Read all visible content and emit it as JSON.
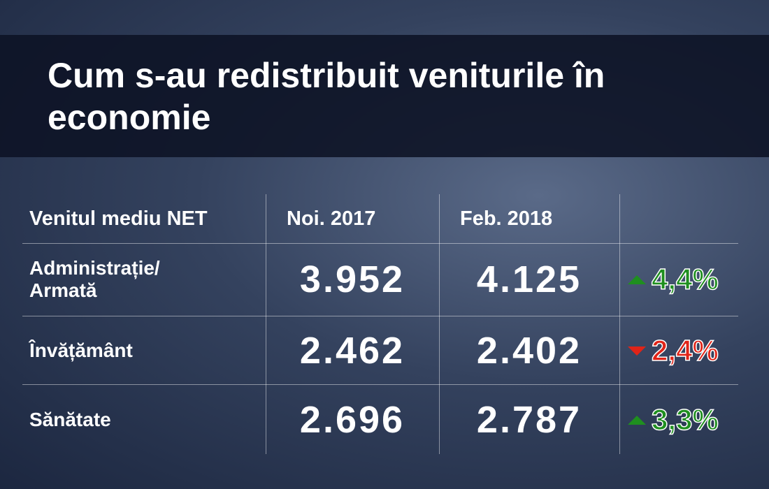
{
  "header": {
    "title": "Cum s-au redistribuit veniturile în economie"
  },
  "table": {
    "columns": [
      "Venitul mediu NET",
      "Noi. 2017",
      "Feb. 2018"
    ],
    "rows": [
      {
        "label": "Administrație/\nArmată",
        "values": [
          "3.952",
          "4.125"
        ],
        "change": "4,4%",
        "direction": "up"
      },
      {
        "label": "Învățământ",
        "values": [
          "2.462",
          "2.402"
        ],
        "change": "2,4%",
        "direction": "down"
      },
      {
        "label": "Sănătate",
        "values": [
          "2.696",
          "2.787"
        ],
        "change": "3,3%",
        "direction": "up"
      }
    ]
  }
}
